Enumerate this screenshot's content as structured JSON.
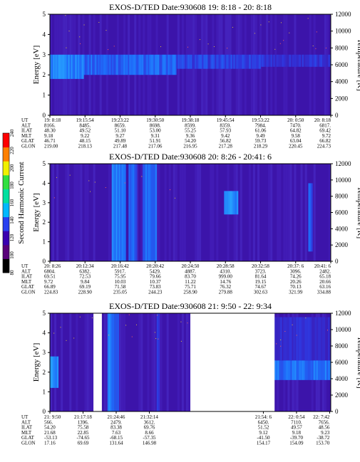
{
  "colorbar": {
    "label": "Second Harmonic Current",
    "ticks": [
      "80",
      "100",
      "120",
      "140",
      "160",
      "180",
      "200",
      "220",
      "240"
    ],
    "colors": [
      "#000000",
      "#5a007a",
      "#3a00b0",
      "#2840f0",
      "#00b8ff",
      "#00e0a0",
      "#30e040",
      "#f0f000",
      "#ff8000",
      "#ff0000"
    ]
  },
  "chart_data": [
    {
      "type": "heatmap",
      "title": "EXOS-D/TED    Date:930608  19: 8:18 - 20: 8:18",
      "ylabel": "Energy [eV]",
      "y2label": "Temperature [K]",
      "ylim": [
        0,
        5
      ],
      "y2lim": [
        0,
        12000
      ],
      "yticks": [
        "0",
        "1",
        "2",
        "3",
        "4",
        "5"
      ],
      "y2ticks": [
        "0",
        "2000",
        "4000",
        "6000",
        "8000",
        "10000",
        "12000"
      ],
      "gaps": [],
      "features": [
        {
          "t0": 0.0,
          "t1": 0.12,
          "e0": 1.8,
          "e1": 3.0,
          "level": 0.62
        },
        {
          "t0": 0.12,
          "t1": 0.45,
          "e0": 2.0,
          "e1": 3.0,
          "level": 0.5
        },
        {
          "t0": 0.45,
          "t1": 0.75,
          "e0": 2.3,
          "e1": 3.0,
          "level": 0.35
        },
        {
          "t0": 0.75,
          "t1": 1.0,
          "e0": 2.4,
          "e1": 3.0,
          "level": 0.25
        }
      ],
      "orbit": {
        "labels": [
          "UT",
          "ALT",
          "ILAT",
          "MLT",
          "GLAT",
          "GLON"
        ],
        "columns": [
          {
            "pos": 0.0,
            "values": [
              "19: 8:18",
              "8166.",
              "48.30",
              "9.18",
              "46.71",
              "219.00"
            ]
          },
          {
            "pos": 0.125,
            "values": [
              "19:15:54",
              "8485.",
              "49.52",
              "9.22",
              "48.15",
              "218.13"
            ]
          },
          {
            "pos": 0.25,
            "values": [
              "19:23:22",
              "8659.",
              "51.10",
              "9.27",
              "49.89",
              "217.48"
            ]
          },
          {
            "pos": 0.375,
            "values": [
              "19:30:50",
              "8698.",
              "53.00",
              "9.31",
              "51.91",
              "217.06"
            ]
          },
          {
            "pos": 0.5,
            "values": [
              "19:38:18",
              "8599.",
              "55.25",
              "9.36",
              "54.20",
              "216.95"
            ]
          },
          {
            "pos": 0.625,
            "values": [
              "19:45:54",
              "8359.",
              "57.93",
              "9.42",
              "56.82",
              "217.28"
            ]
          },
          {
            "pos": 0.75,
            "values": [
              "19:53:22",
              "7984.",
              "61.06",
              "9.49",
              "59.73",
              "218.29"
            ]
          },
          {
            "pos": 0.875,
            "values": [
              "20: 0:50",
              "7470.",
              "64.82",
              "9.58",
              "63.04",
              "220.45"
            ]
          },
          {
            "pos": 1.0,
            "values": [
              "20: 8:18",
              "6817.",
              "69.42",
              "9.72",
              "66.82",
              "224.73"
            ]
          }
        ]
      }
    },
    {
      "type": "heatmap",
      "title": "EXOS-D/TED    Date:930608  20: 8:26 - 20:41: 6",
      "ylabel": "Energy [eV]",
      "y2label": "Temperature [K]",
      "ylim": [
        0,
        5
      ],
      "y2lim": [
        0,
        12000
      ],
      "yticks": [
        "0",
        "1",
        "2",
        "3",
        "4",
        "5"
      ],
      "y2ticks": [
        "0",
        "2000",
        "4000",
        "6000",
        "8000",
        "10000",
        "12000"
      ],
      "gaps": [],
      "features": [
        {
          "t0": 0.22,
          "t1": 0.27,
          "e0": 0.0,
          "e1": 5.0,
          "level": 0.6
        },
        {
          "t0": 0.28,
          "t1": 0.31,
          "e0": 0.0,
          "e1": 5.0,
          "level": 0.45
        },
        {
          "t0": 0.33,
          "t1": 0.38,
          "e0": 0.0,
          "e1": 5.0,
          "level": 0.55
        },
        {
          "t0": 0.62,
          "t1": 0.67,
          "e0": 2.4,
          "e1": 3.6,
          "level": 0.65
        },
        {
          "t0": 0.92,
          "t1": 0.935,
          "e0": 0.5,
          "e1": 4.0,
          "level": 0.45
        }
      ],
      "orbit": {
        "labels": [
          "UT",
          "ALT",
          "ILAT",
          "MLT",
          "GLAT",
          "GLON"
        ],
        "columns": [
          {
            "pos": 0.0,
            "values": [
              "20: 8:26",
              "6804.",
              "69.51",
              "9.72",
              "66.89",
              "224.83"
            ]
          },
          {
            "pos": 0.125,
            "values": [
              "20:12:34",
              "6382.",
              "72.53",
              "9.84",
              "69.19",
              "228.90"
            ]
          },
          {
            "pos": 0.25,
            "values": [
              "20:16:42",
              "5917.",
              "75.95",
              "10.03",
              "71.58",
              "235.05"
            ]
          },
          {
            "pos": 0.375,
            "values": [
              "20:20:42",
              "5429.",
              "79.66",
              "10.37",
              "73.83",
              "244.23"
            ]
          },
          {
            "pos": 0.5,
            "values": [
              "20:24:50",
              "4887.",
              "83.70",
              "11.22",
              "75.71",
              "258.90"
            ]
          },
          {
            "pos": 0.625,
            "values": [
              "20:28:58",
              "4310.",
              "999.00",
              "14.76",
              "76.32",
              "279.88"
            ]
          },
          {
            "pos": 0.75,
            "values": [
              "20:32:58",
              "3723.",
              "81.64",
              "19.15",
              "74.67",
              "302.63"
            ]
          },
          {
            "pos": 0.875,
            "values": [
              "20:37: 6",
              "3096.",
              "74.26",
              "20.26",
              "70.13",
              "321.99"
            ]
          },
          {
            "pos": 1.0,
            "values": [
              "20:41: 6",
              "2482.",
              "65.18",
              "20.66",
              "63.16",
              "334.88"
            ]
          }
        ]
      }
    },
    {
      "type": "heatmap",
      "title": "EXOS-D/TED    Date:930608  21: 9:50 - 22: 9:34",
      "ylabel": "Energy [eV]",
      "y2label": "Temperature [K]",
      "ylim": [
        0,
        5
      ],
      "y2lim": [
        0,
        12000
      ],
      "yticks": [
        "0",
        "1",
        "2",
        "3",
        "4",
        "5"
      ],
      "y2ticks": [
        "0",
        "2000",
        "4000",
        "6000",
        "8000",
        "10000",
        "12000"
      ],
      "gaps": [
        [
          0.155,
          0.185
        ],
        [
          0.5,
          0.8
        ]
      ],
      "features": [
        {
          "t0": 0.0,
          "t1": 0.03,
          "e0": 1.2,
          "e1": 2.8,
          "level": 0.65
        },
        {
          "t0": 0.205,
          "t1": 0.23,
          "e0": 0.0,
          "e1": 5.0,
          "level": 0.6
        },
        {
          "t0": 0.232,
          "t1": 0.245,
          "e0": 0.0,
          "e1": 5.0,
          "level": 0.5
        },
        {
          "t0": 0.38,
          "t1": 0.39,
          "e0": 0.0,
          "e1": 5.0,
          "level": 0.35
        },
        {
          "t0": 0.8,
          "t1": 1.0,
          "e0": 1.6,
          "e1": 2.6,
          "level": 0.55
        },
        {
          "t0": 0.8,
          "t1": 1.0,
          "e0": 2.6,
          "e1": 4.8,
          "level": 0.2
        }
      ],
      "orbit": {
        "labels": [
          "UT",
          "ALT",
          "ILAT",
          "MLT",
          "GLAT",
          "GLON"
        ],
        "columns": [
          {
            "pos": 0.0,
            "values": [
              "21: 9:50",
              "566.",
              "54.20",
              "21.68",
              "-53.13",
              "17.16"
            ]
          },
          {
            "pos": 0.118,
            "values": [
              "21:17:18",
              "1396.",
              "75.58",
              "22.85",
              "-74.65",
              "69.69"
            ]
          },
          {
            "pos": 0.236,
            "values": [
              "21:24:46",
              "2479.",
              "83.38",
              "7.63",
              "-68.15",
              "131.64"
            ]
          },
          {
            "pos": 0.354,
            "values": [
              "21:32:14",
              "3612.",
              "69.76",
              "8.66",
              "-57.35",
              "146.98"
            ]
          },
          {
            "pos": 0.76,
            "values": [
              "21:54: 6",
              "6450.",
              "51.52",
              "9.12",
              "-41.50",
              "154.17"
            ]
          },
          {
            "pos": 0.878,
            "values": [
              "22: 0:54",
              "7110.",
              "49.57",
              "9.18",
              "-39.70",
              "154.09"
            ]
          },
          {
            "pos": 0.996,
            "values": [
              "22: 7:42",
              "7656.",
              "48.56",
              "9.23",
              "-38.72",
              "153.70"
            ]
          }
        ]
      }
    }
  ]
}
